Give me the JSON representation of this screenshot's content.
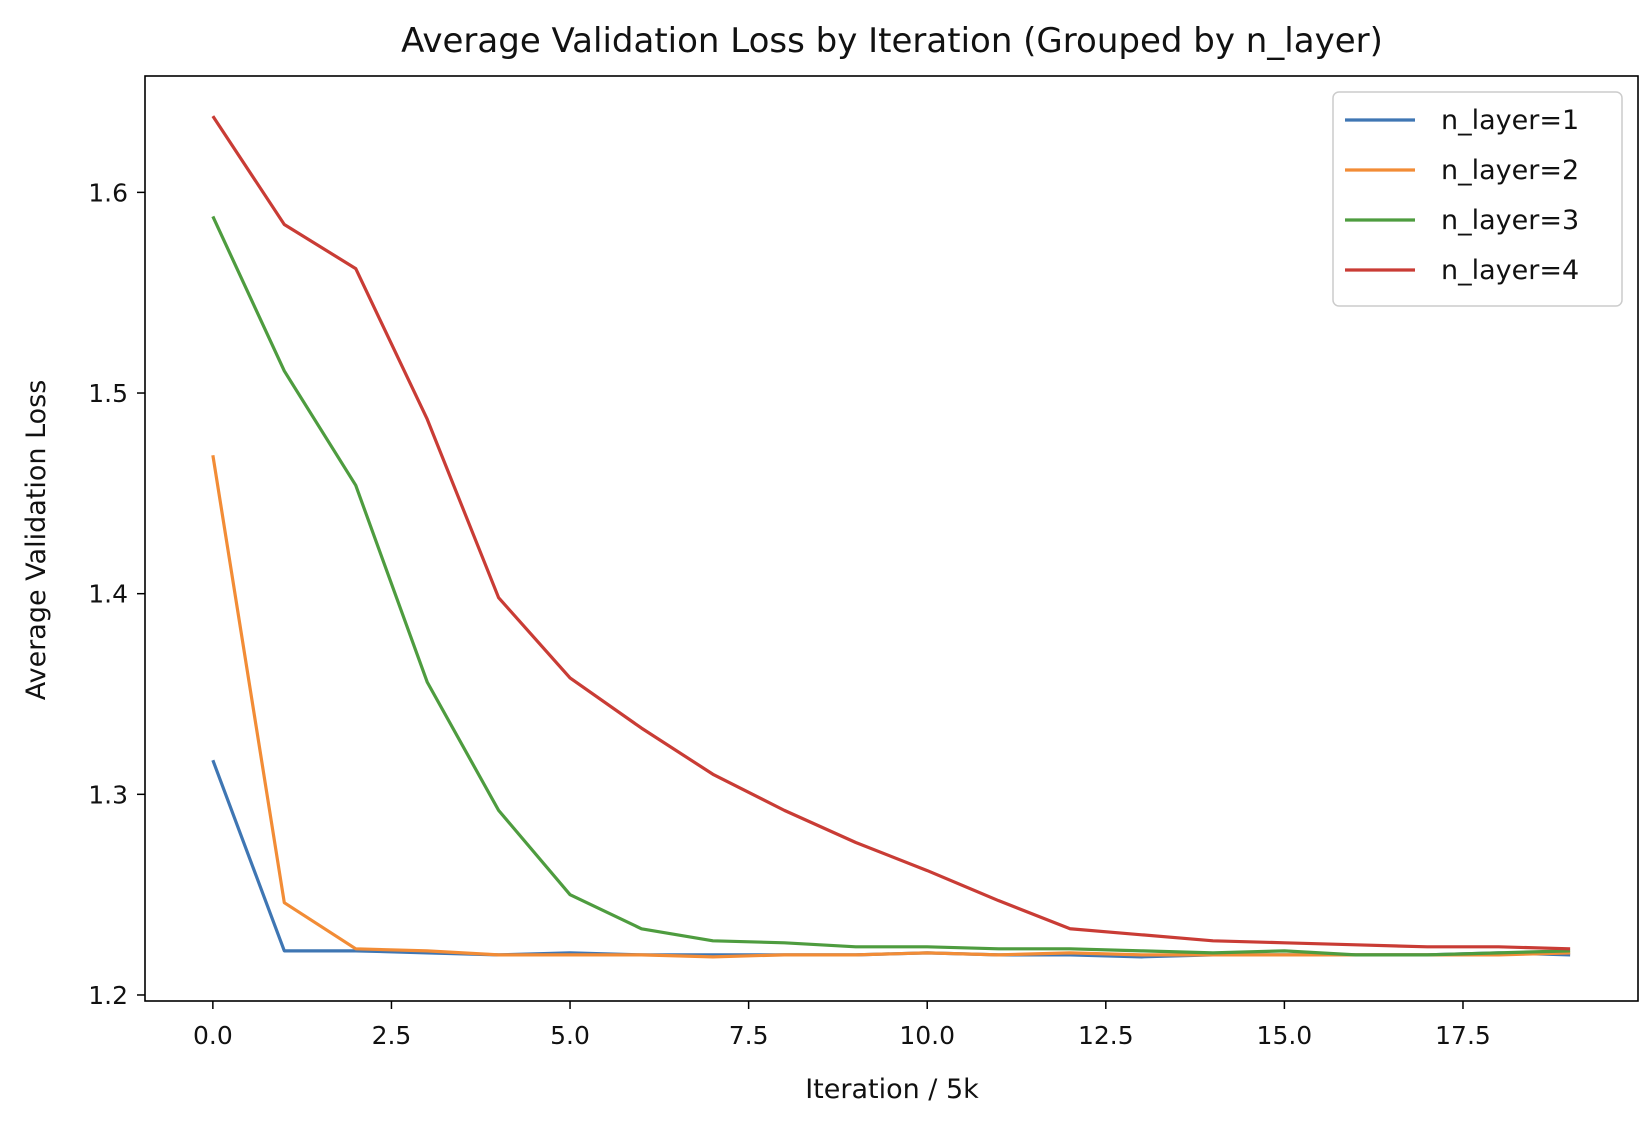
{
  "chart_data": {
    "type": "line",
    "title": "Average Validation Loss by Iteration (Grouped by n_layer)",
    "xlabel": "Iteration / 5k",
    "ylabel": "Average Validation Loss",
    "xlim": [
      -0.95,
      19.95
    ],
    "ylim": [
      1.197,
      1.658
    ],
    "xticks": [
      0,
      2.5,
      5,
      7.5,
      10,
      12.5,
      15,
      17.5
    ],
    "xtick_labels": [
      "0.0",
      "2.5",
      "5.0",
      "7.5",
      "10.0",
      "12.5",
      "15.0",
      "17.5"
    ],
    "yticks": [
      1.2,
      1.3,
      1.4,
      1.5,
      1.6
    ],
    "ytick_labels": [
      "1.2",
      "1.3",
      "1.4",
      "1.5",
      "1.6"
    ],
    "grid": false,
    "legend_position": "top-right",
    "x": [
      0,
      1,
      2,
      3,
      4,
      5,
      6,
      7,
      8,
      9,
      10,
      11,
      12,
      13,
      14,
      15,
      16,
      17,
      18,
      19
    ],
    "series": [
      {
        "name": "n_layer=1",
        "color": "#3f76b3",
        "values": [
          1.317,
          1.222,
          1.222,
          1.221,
          1.22,
          1.221,
          1.22,
          1.22,
          1.22,
          1.22,
          1.221,
          1.22,
          1.22,
          1.219,
          1.22,
          1.22,
          1.22,
          1.22,
          1.221,
          1.22
        ]
      },
      {
        "name": "n_layer=2",
        "color": "#f28c36",
        "values": [
          1.469,
          1.246,
          1.223,
          1.222,
          1.22,
          1.22,
          1.22,
          1.219,
          1.22,
          1.22,
          1.221,
          1.22,
          1.221,
          1.22,
          1.22,
          1.22,
          1.22,
          1.22,
          1.22,
          1.221
        ]
      },
      {
        "name": "n_layer=3",
        "color": "#4e9c3f",
        "values": [
          1.588,
          1.511,
          1.454,
          1.356,
          1.292,
          1.25,
          1.233,
          1.227,
          1.226,
          1.224,
          1.224,
          1.223,
          1.223,
          1.222,
          1.221,
          1.222,
          1.22,
          1.22,
          1.221,
          1.222
        ]
      },
      {
        "name": "n_layer=4",
        "color": "#c93c35",
        "values": [
          1.638,
          1.584,
          1.562,
          1.487,
          1.398,
          1.358,
          1.333,
          1.31,
          1.292,
          1.276,
          1.262,
          1.247,
          1.233,
          1.23,
          1.227,
          1.226,
          1.225,
          1.224,
          1.224,
          1.223
        ]
      }
    ]
  }
}
